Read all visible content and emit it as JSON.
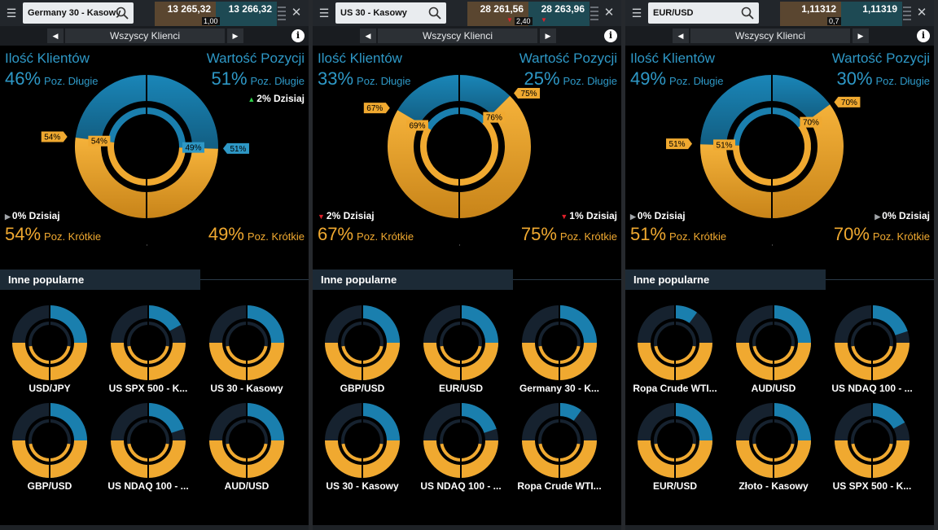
{
  "panels": [
    {
      "instrument": "Germany 30 - Kasowy",
      "sell": "13 265,32",
      "buy": "13 266,32",
      "spread": "1,00",
      "spread_down": false,
      "filter": "Wszyscy Klienci",
      "clients_title": "Ilość Klientów",
      "position_title": "Wartość Pozycji",
      "clients_long": "46%",
      "position_long": "51%",
      "clients_short": "54%",
      "position_short": "49%",
      "long_label": "Poz. Długie",
      "short_label": "Poz. Krótkie",
      "clients_long_value": 46,
      "position_long_value": 51,
      "tag_outer_short": "54%",
      "tag_inner_short": "54%",
      "tag_outer_long": "51%",
      "tag_inner_long": "49%",
      "today_left": "0% Dzisiaj",
      "today_left_dir": "flat",
      "today_right": "2% Dzisiaj",
      "today_right_dir": "up",
      "today_right_pos": "top",
      "inne_label": "Inne popularne",
      "mini": [
        {
          "label": "USD/JPY",
          "long": 25
        },
        {
          "label": "US SPX 500 - K...",
          "long": 17
        },
        {
          "label": "US 30 - Kasowy",
          "long": 25
        },
        {
          "label": "GBP/USD",
          "long": 60
        },
        {
          "label": "US NDAQ 100 - ...",
          "long": 20
        },
        {
          "label": "AUD/USD",
          "long": 40
        }
      ]
    },
    {
      "instrument": "US 30 - Kasowy",
      "sell": "28 261,56",
      "buy": "28 263,96",
      "spread": "2,40",
      "spread_down": true,
      "filter": "Wszyscy Klienci",
      "clients_title": "Ilość Klientów",
      "position_title": "Wartość Pozycji",
      "clients_long": "33%",
      "position_long": "25%",
      "clients_short": "67%",
      "position_short": "75%",
      "long_label": "Poz. Długie",
      "short_label": "Poz. Krótkie",
      "clients_long_value": 33,
      "position_long_value": 25,
      "tag_outer_short": "67%",
      "tag_inner_short": "69%",
      "tag_outer_long": "75%",
      "tag_inner_long": "76%",
      "today_left": "2% Dzisiaj",
      "today_left_dir": "down",
      "today_right": "1% Dzisiaj",
      "today_right_dir": "down",
      "today_right_pos": "bottom",
      "inne_label": "Inne popularne",
      "mini": [
        {
          "label": "GBP/USD",
          "long": 60
        },
        {
          "label": "EUR/USD",
          "long": 40
        },
        {
          "label": "Germany 30 - K...",
          "long": 45
        },
        {
          "label": "US 30 - Kasowy",
          "long": 25
        },
        {
          "label": "US NDAQ 100 - ...",
          "long": 20
        },
        {
          "label": "Ropa Crude WTI...",
          "long": 10
        }
      ]
    },
    {
      "instrument": "EUR/USD",
      "sell": "1,11312",
      "buy": "1,11319",
      "spread": "0,7",
      "spread_down": false,
      "filter": "Wszyscy Klienci",
      "clients_title": "Ilość Klientów",
      "position_title": "Wartość Pozycji",
      "clients_long": "49%",
      "position_long": "30%",
      "clients_short": "51%",
      "position_short": "70%",
      "long_label": "Poz. Długie",
      "short_label": "Poz. Krótkie",
      "clients_long_value": 49,
      "position_long_value": 30,
      "tag_outer_short": "51%",
      "tag_inner_short": "51%",
      "tag_outer_long": "70%",
      "tag_inner_long": "70%",
      "today_left": "0% Dzisiaj",
      "today_left_dir": "flat",
      "today_right": "0% Dzisiaj",
      "today_right_dir": "flat",
      "today_right_pos": "bottom",
      "inne_label": "Inne popularne",
      "mini": [
        {
          "label": "Ropa Crude WTI...",
          "long": 10
        },
        {
          "label": "AUD/USD",
          "long": 40
        },
        {
          "label": "US NDAQ 100 - ...",
          "long": 20
        },
        {
          "label": "EUR/USD",
          "long": 40
        },
        {
          "label": "Złoto - Kasowy",
          "long": 60
        },
        {
          "label": "US SPX 500 - K...",
          "long": 17
        }
      ]
    }
  ],
  "colors": {
    "long_blue": "#1a7fae",
    "short_gold": "#f0a930",
    "short_gold_dark": "#c9841c",
    "empty_navy": "#16222f",
    "label_blue": "#2e98c6"
  },
  "icons": {
    "menu": "hamburger-icon",
    "search": "search-icon",
    "close": "close-icon",
    "info": "info-icon",
    "prev": "arrow-left-icon",
    "next": "arrow-right-icon"
  }
}
